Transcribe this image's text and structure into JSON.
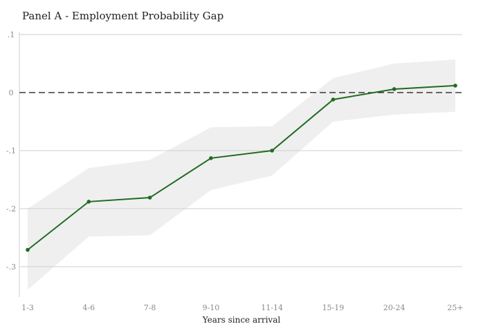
{
  "chart_data": {
    "type": "line",
    "title": "Panel A - Employment Probability Gap",
    "xlabel": "Years since arrival",
    "ylabel": "",
    "categories": [
      "1-3",
      "4-6",
      "7-8",
      "9-10",
      "11-14",
      "15-19",
      "20-24",
      "25+"
    ],
    "series": [
      {
        "values": [
          -0.271,
          -0.188,
          -0.181,
          -0.113,
          -0.1,
          -0.012,
          0.006,
          0.012
        ],
        "ci_lower": [
          -0.34,
          -0.248,
          -0.246,
          -0.168,
          -0.143,
          -0.05,
          -0.038,
          -0.033
        ],
        "ci_upper": [
          -0.2,
          -0.13,
          -0.116,
          -0.06,
          -0.058,
          0.025,
          0.05,
          0.057
        ]
      }
    ],
    "yticks": [
      ".1",
      "0",
      "-.1",
      "-.2",
      "-.3"
    ],
    "ytick_values": [
      0.1,
      0,
      -0.1,
      -0.2,
      -0.3
    ],
    "ylim": [
      -0.35,
      0.1
    ],
    "reference_line": 0,
    "grid": true,
    "colors": {
      "line": "#1f6b1f",
      "band": "#efefef",
      "grid": "#cfcfcf",
      "reference": "#111111",
      "tick_text": "#8a8a8a",
      "label_text": "#222222"
    }
  }
}
